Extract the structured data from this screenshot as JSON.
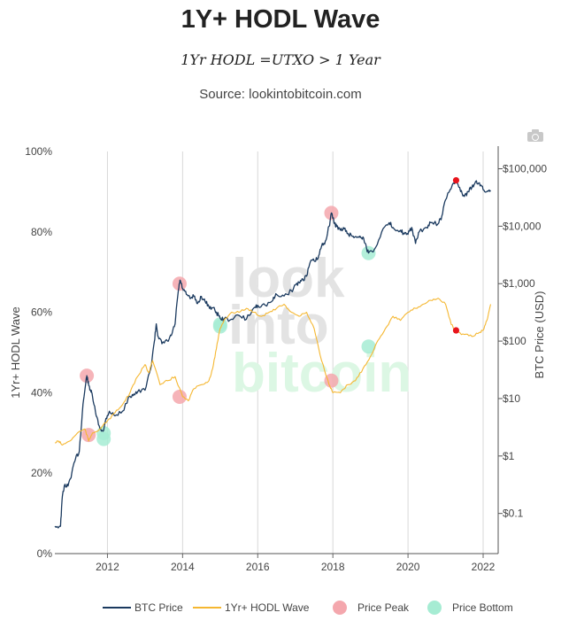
{
  "header": {
    "title": "1Y+ HODL Wave",
    "subtitle": "1Yr HODL =UTXO > 1 Year",
    "source": "Source: lookintobitcoin.com"
  },
  "toolbar": {
    "camera_icon": "camera-icon"
  },
  "watermark": [
    "look",
    "into",
    "bitcoin"
  ],
  "colors": {
    "btc": "#1b3a5f",
    "hodl": "#f5b731",
    "peak": "#f4a7ad",
    "bottom": "#a6ecd3",
    "marker": "#e8141c",
    "grid": "#d8d8d8",
    "wm_gray": "#e3e3e3",
    "wm_green": "#dcf7e4"
  },
  "chart_data": {
    "type": "line",
    "title": "1Y+ HODL Wave",
    "subtitle": "1Yr HODL =UTXO > 1 Year",
    "xlabel": "",
    "xlim": [
      2010.6,
      2022.4
    ],
    "x_ticks": [
      "2012",
      "2014",
      "2016",
      "2018",
      "2020",
      "2022"
    ],
    "y_left": {
      "label": "1Yr+ HODL Wave",
      "range": [
        0,
        100
      ],
      "ticks": [
        "0%",
        "20%",
        "40%",
        "60%",
        "80%",
        "100%"
      ]
    },
    "y_right": {
      "label": "BTC Price (USD)",
      "scale": "log",
      "range": [
        0.02,
        200000
      ],
      "ticks": [
        "$0.1",
        "$1",
        "$10",
        "$100",
        "$1,000",
        "$10,000",
        "$100,000"
      ]
    },
    "grid": {
      "vertical": true,
      "horizontal": false
    },
    "legend": {
      "position": "bottom",
      "entries": [
        "BTC Price",
        "1Yr+ HODL Wave",
        "Price Peak",
        "Price Bottom"
      ]
    },
    "series": [
      {
        "name": "BTC Price",
        "axis": "right",
        "x": [
          2010.6,
          2010.75,
          2010.8,
          2010.85,
          2010.95,
          2011.05,
          2011.15,
          2011.25,
          2011.35,
          2011.42,
          2011.45,
          2011.5,
          2011.55,
          2011.6,
          2011.7,
          2011.8,
          2011.9,
          2011.96,
          2012.05,
          2012.2,
          2012.4,
          2012.6,
          2012.7,
          2012.8,
          2013.0,
          2013.15,
          2013.25,
          2013.3,
          2013.35,
          2013.45,
          2013.6,
          2013.7,
          2013.8,
          2013.88,
          2013.93,
          2014.0,
          2014.1,
          2014.2,
          2014.3,
          2014.4,
          2014.5,
          2014.6,
          2014.7,
          2014.8,
          2014.9,
          2015.0,
          2015.1,
          2015.3,
          2015.5,
          2015.7,
          2015.9,
          2016.0,
          2016.2,
          2016.4,
          2016.5,
          2016.7,
          2016.9,
          2017.0,
          2017.1,
          2017.2,
          2017.3,
          2017.4,
          2017.5,
          2017.6,
          2017.7,
          2017.8,
          2017.9,
          2017.96,
          2018.05,
          2018.1,
          2018.2,
          2018.3,
          2018.4,
          2018.5,
          2018.6,
          2018.7,
          2018.8,
          2018.9,
          2018.96,
          2019.1,
          2019.3,
          2019.5,
          2019.6,
          2019.8,
          2019.9,
          2020.0,
          2020.1,
          2020.2,
          2020.3,
          2020.5,
          2020.6,
          2020.8,
          2020.9,
          2021.0,
          2021.1,
          2021.2,
          2021.28,
          2021.4,
          2021.5,
          2021.6,
          2021.7,
          2021.8,
          2021.9,
          2022.0,
          2022.1,
          2022.2
        ],
        "y": [
          0.06,
          0.06,
          0.2,
          0.3,
          0.3,
          0.5,
          0.9,
          1.2,
          8,
          18,
          25,
          17,
          14,
          11,
          5,
          3,
          2.8,
          4.5,
          6,
          5,
          6,
          11,
          12,
          13,
          14,
          33,
          100,
          200,
          120,
          90,
          100,
          125,
          200,
          700,
          1150,
          820,
          650,
          550,
          600,
          450,
          600,
          490,
          400,
          380,
          320,
          250,
          240,
          240,
          280,
          240,
          380,
          420,
          420,
          510,
          650,
          610,
          750,
          950,
          1050,
          1200,
          1350,
          2400,
          2500,
          2700,
          4500,
          5500,
          10000,
          17000,
          11000,
          10000,
          8500,
          9000,
          7500,
          6800,
          6600,
          6400,
          6500,
          4000,
          3500,
          3900,
          8000,
          11500,
          9500,
          8500,
          7300,
          7200,
          9500,
          5000,
          8000,
          9500,
          11500,
          11000,
          15000,
          29000,
          40000,
          56000,
          63000,
          40000,
          33000,
          40000,
          47000,
          60000,
          57000,
          43000,
          40000,
          42000
        ]
      },
      {
        "name": "1Yr+ HODL Wave",
        "axis": "left",
        "x": [
          2010.6,
          2010.7,
          2010.8,
          2011.0,
          2011.2,
          2011.4,
          2011.5,
          2011.6,
          2011.8,
          2012.0,
          2012.2,
          2012.4,
          2012.6,
          2012.8,
          2013.0,
          2013.1,
          2013.2,
          2013.4,
          2013.6,
          2013.8,
          2014.0,
          2014.15,
          2014.3,
          2014.5,
          2014.7,
          2014.8,
          2014.9,
          2015.0,
          2015.1,
          2015.3,
          2015.5,
          2015.7,
          2015.9,
          2016.1,
          2016.3,
          2016.5,
          2016.7,
          2016.9,
          2017.1,
          2017.3,
          2017.5,
          2017.7,
          2017.9,
          2018.0,
          2018.2,
          2018.4,
          2018.6,
          2018.8,
          2019.0,
          2019.2,
          2019.4,
          2019.6,
          2019.8,
          2020.0,
          2020.2,
          2020.4,
          2020.6,
          2020.8,
          2021.0,
          2021.15,
          2021.3,
          2021.5,
          2021.7,
          2021.9,
          2022.0,
          2022.1,
          2022.2
        ],
        "y": [
          27.5,
          28,
          27,
          28,
          30,
          31,
          28,
          30,
          31,
          33,
          35,
          37,
          40,
          44,
          47,
          45,
          48,
          42,
          43,
          44,
          39,
          38,
          41,
          42,
          43,
          46,
          51,
          56,
          58,
          60,
          60,
          61,
          60,
          59,
          60,
          61,
          62,
          60,
          59,
          60,
          56,
          48,
          42,
          40,
          40,
          42,
          43,
          46,
          49,
          53,
          56,
          59,
          58,
          60,
          61,
          62,
          63,
          63.5,
          62,
          57,
          55,
          54.5,
          54,
          55,
          55.5,
          58,
          62
        ]
      },
      {
        "name": "Price Peak",
        "axis": "right",
        "marker": "circle",
        "x": [
          2011.45,
          2013.92,
          2017.96
        ],
        "y": [
          25,
          1000,
          17000
        ]
      },
      {
        "name": "Price Bottom",
        "axis": "right",
        "marker": "circle",
        "x": [
          2011.9,
          2015.0,
          2018.95
        ],
        "y": [
          2.5,
          180,
          3400
        ]
      },
      {
        "name": "Price Peak",
        "axis": "left",
        "marker": "circle",
        "x": [
          2011.5,
          2013.92,
          2017.96
        ],
        "y": [
          29.5,
          39,
          43
        ]
      },
      {
        "name": "Price Bottom",
        "axis": "left",
        "marker": "circle",
        "x": [
          2011.9,
          2015.0,
          2018.95
        ],
        "y": [
          28.5,
          57,
          51.5
        ]
      }
    ],
    "highlight_points": [
      {
        "axis": "right",
        "x": 2021.28,
        "y": 63000
      },
      {
        "axis": "left",
        "x": 2021.28,
        "y": 55.5
      }
    ]
  }
}
